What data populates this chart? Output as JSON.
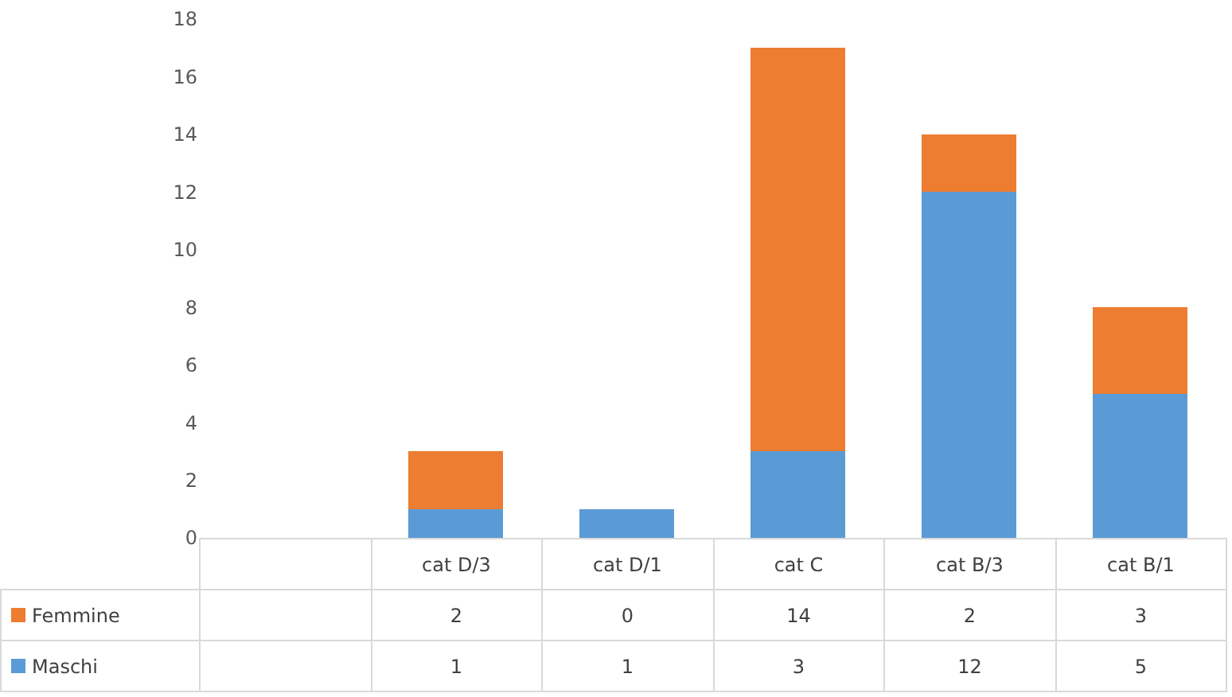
{
  "chart_data": {
    "type": "bar",
    "stacked": true,
    "categories": [
      null,
      "cat D/3",
      "cat D/1",
      "cat C",
      "cat B/3",
      "cat B/1"
    ],
    "series": [
      {
        "name": "Maschi",
        "color": "#5b9bd5",
        "values": [
          null,
          1,
          1,
          3,
          12,
          5
        ]
      },
      {
        "name": "Femmine",
        "color": "#ed7d31",
        "values": [
          null,
          2,
          0,
          14,
          2,
          3
        ]
      }
    ],
    "ylim": [
      0,
      18
    ],
    "yticks": [
      0,
      2,
      4,
      6,
      8,
      10,
      12,
      14,
      16,
      18
    ],
    "data_labels": true,
    "legend": "bottom left"
  }
}
